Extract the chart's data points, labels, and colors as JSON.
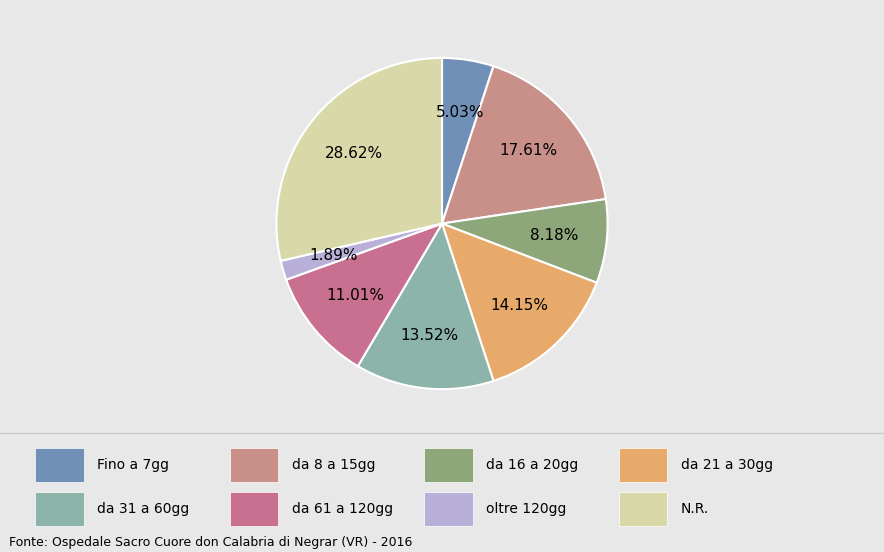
{
  "labels": [
    "Fino a 7gg",
    "da 8 a 15gg",
    "da 16 a 20gg",
    "da 21 a 30gg",
    "da 31 a 60gg",
    "da 61 a 120gg",
    "oltre 120gg",
    "N.R."
  ],
  "values": [
    5.03,
    17.61,
    8.18,
    14.15,
    13.52,
    11.01,
    1.89,
    28.62
  ],
  "colors": [
    "#7090b8",
    "#c9908a",
    "#8da67a",
    "#e8aa6a",
    "#8db4aa",
    "#c97090",
    "#b8b0d8",
    "#d8d8a8"
  ],
  "pct_labels": [
    "5.03%",
    "17.61%",
    "8.18%",
    "14.15%",
    "13.52%",
    "11.01%",
    "1.89%",
    "28.62%"
  ],
  "background_color": "#e8e8e8",
  "legend_bg_color": "#f0f0f0",
  "font_size_pct": 11,
  "font_size_legend": 10,
  "font_size_source": 9,
  "source_text": "Fonte: Ospedale Sacro Cuore don Calabria di Negrar (VR) - 2016",
  "legend_labels": [
    "Fino a 7gg",
    "da 8 a 15gg",
    "da 16 a 20gg",
    "da 21 a 30gg",
    "da 31 a 60gg",
    "da 61 a 120gg",
    "oltre 120gg",
    "N.R."
  ]
}
